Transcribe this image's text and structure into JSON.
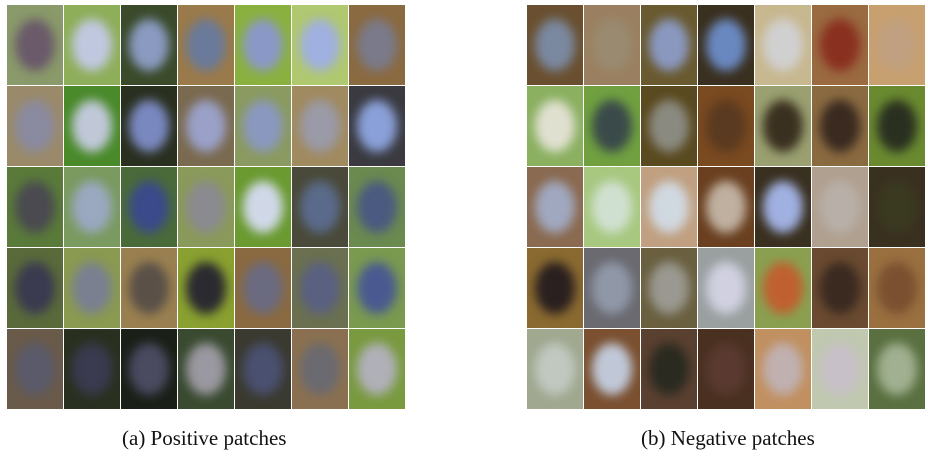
{
  "figures": [
    {
      "caption": "(a) Positive patches"
    },
    {
      "caption": "(b) Negative patches"
    }
  ]
}
